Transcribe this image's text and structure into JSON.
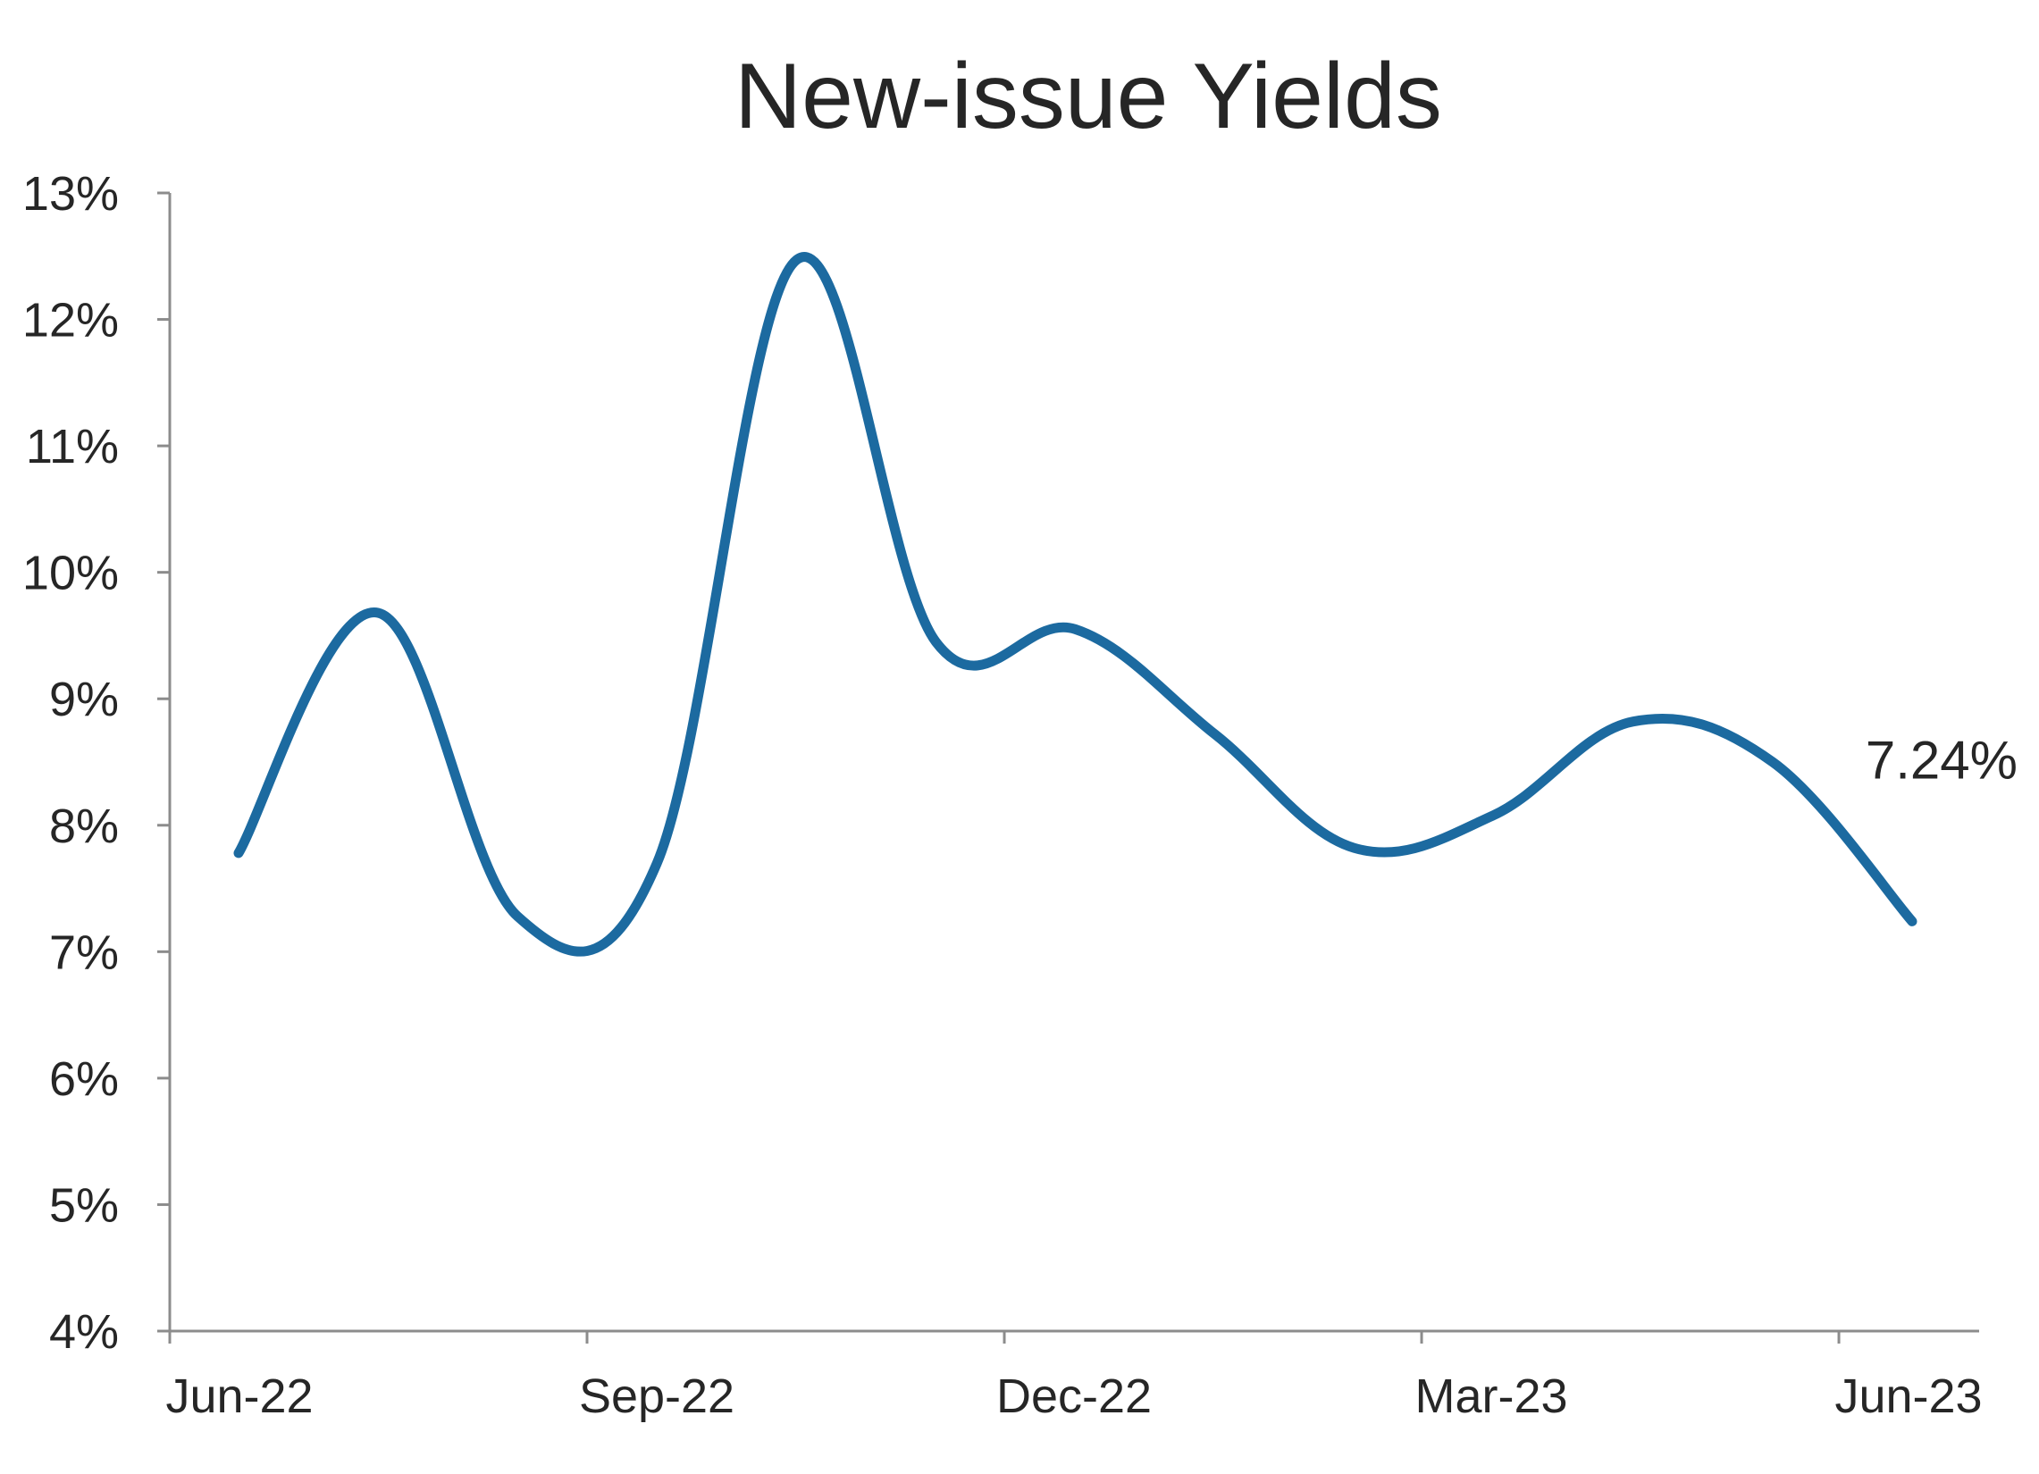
{
  "chart_data": {
    "type": "line",
    "title": "New-issue Yields",
    "xlabel": "",
    "ylabel": "",
    "ylim": [
      4,
      13
    ],
    "yticks": [
      "4%",
      "5%",
      "6%",
      "7%",
      "8%",
      "9%",
      "10%",
      "11%",
      "12%",
      "13%"
    ],
    "xticks": [
      "Jun-22",
      "Sep-22",
      "Dec-22",
      "Mar-23",
      "Jun-23"
    ],
    "grid": false,
    "legend": "none",
    "series": [
      {
        "color": "#1c6aa0",
        "x": [
          "Jun-22",
          "Jul-22",
          "Aug-22",
          "Sep-22",
          "Oct-22",
          "Nov-22",
          "Dec-22",
          "Jan-23",
          "Feb-23",
          "Mar-23",
          "Apr-23",
          "May-23",
          "Jun-23"
        ],
        "values": [
          7.78,
          9.68,
          7.28,
          7.7,
          12.47,
          9.45,
          9.55,
          8.72,
          7.82,
          8.08,
          8.82,
          8.5,
          7.24
        ]
      }
    ],
    "annotations": [
      {
        "text": "7.24%",
        "series": 0,
        "point": "last"
      }
    ]
  }
}
